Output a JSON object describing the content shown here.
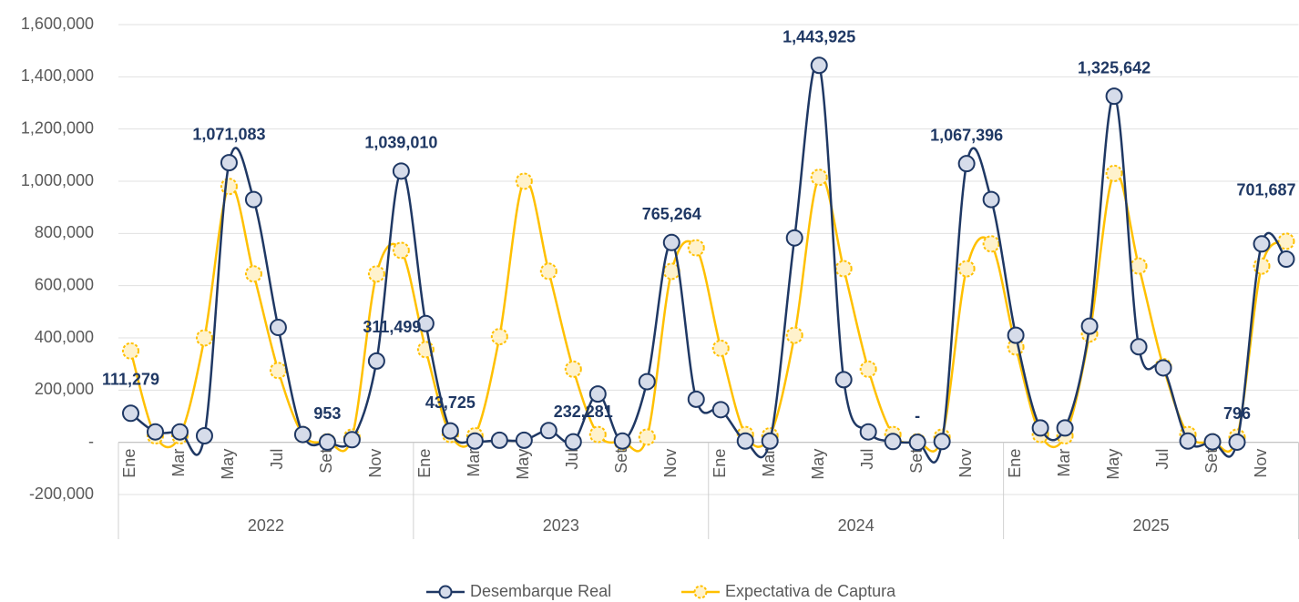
{
  "chart_data": {
    "type": "line",
    "categories": [
      "Ene",
      null,
      "Mar",
      null,
      "May",
      null,
      "Jul",
      null,
      "Set",
      null,
      "Nov",
      null,
      "Ene",
      null,
      "Mar",
      null,
      "May",
      null,
      "Jul",
      null,
      "Set",
      null,
      "Nov",
      null,
      "Ene",
      null,
      "Mar",
      null,
      "May",
      null,
      "Jul",
      null,
      "Set",
      null,
      "Nov",
      null,
      "Ene",
      null,
      "Mar",
      null,
      "May",
      null,
      "Jul",
      null,
      "Set",
      null,
      "Nov",
      null
    ],
    "years": [
      "2022",
      "2023",
      "2024",
      "2025"
    ],
    "ylim": [
      -200000,
      1600000
    ],
    "yticks": [
      {
        "value": -200000,
        "label": "-200,000"
      },
      {
        "value": 0,
        "label": "-"
      },
      {
        "value": 200000,
        "label": "200,000"
      },
      {
        "value": 400000,
        "label": "400,000"
      },
      {
        "value": 600000,
        "label": "600,000"
      },
      {
        "value": 800000,
        "label": "800,000"
      },
      {
        "value": 1000000,
        "label": "1,000,000"
      },
      {
        "value": 1200000,
        "label": "1,200,000"
      },
      {
        "value": 1400000,
        "label": "1,400,000"
      },
      {
        "value": 1600000,
        "label": "1,600,000"
      }
    ],
    "grid": true,
    "legend": "bottom",
    "series": [
      {
        "name": "Desembarque Real",
        "color": "#1f3864",
        "marker_fill": "#d6dcea",
        "values": [
          111279,
          40000,
          40000,
          25000,
          1071083,
          930000,
          440000,
          30000,
          953,
          10000,
          311499,
          1039010,
          455000,
          43725,
          5000,
          8000,
          8000,
          45000,
          2000,
          185000,
          5000,
          232281,
          765264,
          165000,
          125000,
          5000,
          5000,
          783000,
          1443925,
          240000,
          40000,
          3000,
          0,
          3000,
          1067396,
          930000,
          410000,
          55000,
          55000,
          445000,
          1325642,
          366000,
          285000,
          5000,
          2000,
          796,
          760000,
          701687
        ],
        "value_labels": [
          "111,279",
          null,
          null,
          null,
          "1,071,083",
          null,
          null,
          null,
          "953",
          null,
          "311,499",
          "1,039,010",
          null,
          "43,725",
          null,
          null,
          null,
          null,
          null,
          null,
          null,
          "232,281",
          "765,264",
          null,
          null,
          null,
          null,
          null,
          "1,443,925",
          null,
          null,
          null,
          "-",
          null,
          "1,067,396",
          null,
          null,
          null,
          null,
          null,
          "1,325,642",
          null,
          null,
          null,
          null,
          "796",
          null,
          "701,687"
        ]
      },
      {
        "name": "Expectativa de Captura",
        "color": "#ffc000",
        "marker_fill": "#fff2cc",
        "values": [
          350000,
          25000,
          25000,
          400000,
          980000,
          645000,
          275000,
          30000,
          2000,
          20000,
          645000,
          735000,
          355000,
          30000,
          25000,
          405000,
          1000000,
          655000,
          280000,
          30000,
          2000,
          20000,
          655000,
          745000,
          360000,
          30000,
          25000,
          410000,
          1015000,
          665000,
          280000,
          30000,
          2000,
          20000,
          665000,
          760000,
          365000,
          30000,
          25000,
          415000,
          1030000,
          675000,
          290000,
          30000,
          2000,
          20000,
          675000,
          770000
        ]
      }
    ]
  }
}
